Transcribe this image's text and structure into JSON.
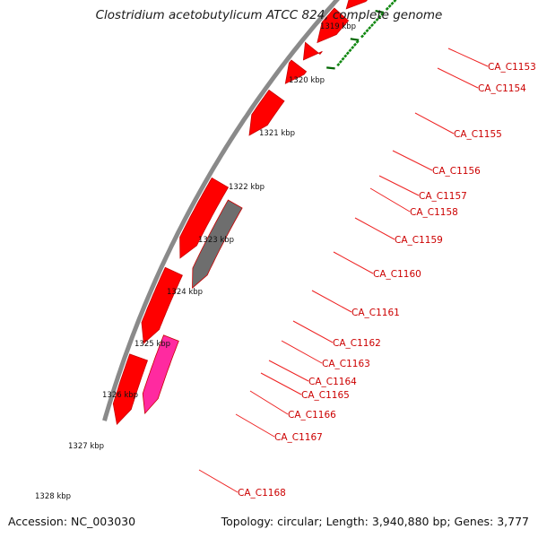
{
  "title": "Clostridium acetobutylicum ATCC 824, complete genome",
  "accession": "Accession: NC_003030",
  "topology": "Topology: circular; Length: 3,940,880 bp; Genes: 3,777",
  "colors": {
    "backbone": "#8a8a8a",
    "gene": "#ff0000",
    "gene_dark": "#c80000",
    "gene_gray": "#6e6e6e",
    "gene_pink": "#ff2aa0",
    "label": "#cc0000",
    "leader": "#ee2222",
    "tick_major": "#006600",
    "tick_minor": "#118811"
  },
  "ruler_labels": [
    "1319 kbp",
    "1320 kbp",
    "1321 kbp",
    "1322 kbp",
    "1323 kbp",
    "1324 kbp",
    "1325 kbp",
    "1326 kbp",
    "1327 kbp",
    "1328 kbp"
  ],
  "gene_labels": [
    "CA_C1153",
    "CA_C1154",
    "CA_C1155",
    "CA_C1156",
    "CA_C1157",
    "CA_C1158",
    "CA_C1159",
    "CA_C1160",
    "CA_C1161",
    "CA_C1162",
    "CA_C1163",
    "CA_C1164",
    "CA_C1165",
    "CA_C1166",
    "CA_C1167",
    "CA_C1168"
  ]
}
